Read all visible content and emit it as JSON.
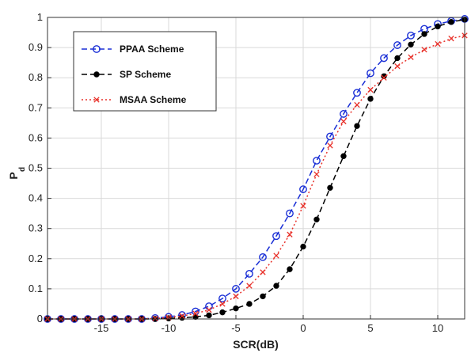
{
  "chart_data": {
    "type": "line",
    "title": "",
    "xlabel": "SCR(dB)",
    "ylabel": "P_d",
    "xlim": [
      -19,
      12
    ],
    "ylim": [
      0,
      1
    ],
    "xticks": [
      -15,
      -10,
      -5,
      0,
      5,
      10
    ],
    "yticks": [
      0,
      0.1,
      0.2,
      0.3,
      0.4,
      0.5,
      0.6,
      0.7,
      0.8,
      0.9,
      1
    ],
    "grid": true,
    "legend_position": "top-left",
    "x": [
      -19,
      -18,
      -17,
      -16,
      -15,
      -14,
      -13,
      -12,
      -11,
      -10,
      -9,
      -8,
      -7,
      -6,
      -5,
      -4,
      -3,
      -2,
      -1,
      0,
      1,
      2,
      3,
      4,
      5,
      6,
      7,
      8,
      9,
      10,
      11,
      12
    ],
    "series": [
      {
        "name": "PPAA Scheme",
        "color": "#1a2fd6",
        "dash": "dashed",
        "marker": "circle-open",
        "values": [
          0,
          0,
          0,
          0,
          0,
          0,
          0,
          0,
          0.003,
          0.007,
          0.013,
          0.025,
          0.042,
          0.068,
          0.1,
          0.15,
          0.205,
          0.275,
          0.35,
          0.43,
          0.525,
          0.605,
          0.68,
          0.75,
          0.815,
          0.865,
          0.908,
          0.94,
          0.962,
          0.978,
          0.988,
          0.995
        ]
      },
      {
        "name": "SP Scheme",
        "color": "#000000",
        "dash": "dashed",
        "marker": "dot",
        "values": [
          0,
          0,
          0,
          0,
          0,
          0,
          0,
          0,
          0,
          0.002,
          0.004,
          0.007,
          0.012,
          0.022,
          0.035,
          0.05,
          0.075,
          0.11,
          0.165,
          0.24,
          0.33,
          0.435,
          0.54,
          0.64,
          0.73,
          0.805,
          0.865,
          0.91,
          0.945,
          0.97,
          0.985,
          0.993
        ]
      },
      {
        "name": "MSAA Scheme",
        "color": "#e8312a",
        "dash": "dotted",
        "marker": "x",
        "values": [
          0,
          0,
          0,
          0,
          0,
          0,
          0,
          0,
          0.002,
          0.005,
          0.01,
          0.018,
          0.03,
          0.05,
          0.075,
          0.11,
          0.155,
          0.21,
          0.28,
          0.375,
          0.48,
          0.575,
          0.655,
          0.71,
          0.76,
          0.8,
          0.838,
          0.868,
          0.893,
          0.912,
          0.93,
          0.94
        ]
      }
    ]
  }
}
